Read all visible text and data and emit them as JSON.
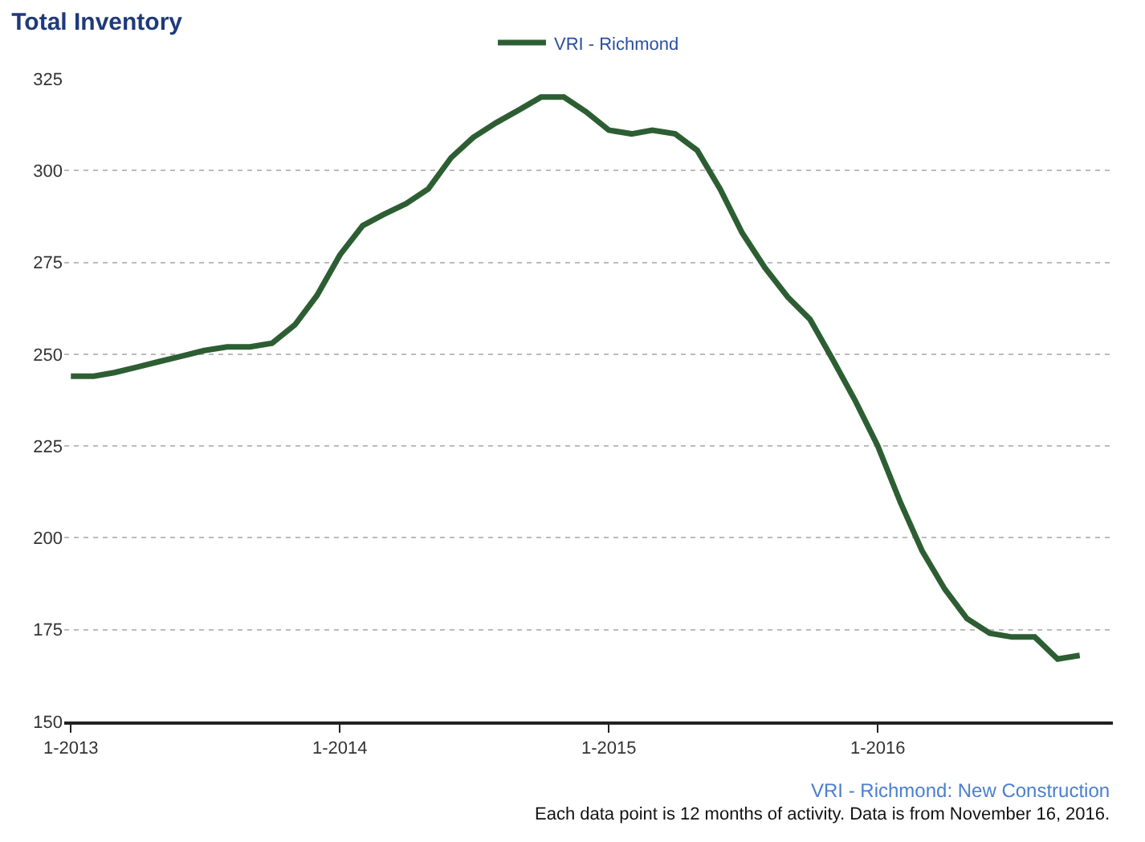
{
  "chart_data": {
    "type": "line",
    "title": "Total Inventory",
    "x": [
      "2013-01",
      "2013-02",
      "2013-03",
      "2013-04",
      "2013-05",
      "2013-06",
      "2013-07",
      "2013-08",
      "2013-09",
      "2013-10",
      "2013-11",
      "2013-12",
      "2014-01",
      "2014-02",
      "2014-03",
      "2014-04",
      "2014-05",
      "2014-06",
      "2014-07",
      "2014-08",
      "2014-09",
      "2014-10",
      "2014-11",
      "2014-12",
      "2015-01",
      "2015-02",
      "2015-03",
      "2015-04",
      "2015-05",
      "2015-06",
      "2015-07",
      "2015-08",
      "2015-09",
      "2015-10",
      "2015-11",
      "2015-12",
      "2016-01",
      "2016-02",
      "2016-03",
      "2016-04",
      "2016-05",
      "2016-06",
      "2016-07",
      "2016-08",
      "2016-09",
      "2016-10"
    ],
    "series": [
      {
        "name": "VRI - Richmond",
        "color": "#2d5e33",
        "values": [
          244,
          244,
          245,
          246.5,
          248,
          249.5,
          251,
          252,
          252,
          253,
          258,
          266,
          277,
          285,
          288,
          291,
          295,
          303.5,
          309,
          313,
          316.5,
          320,
          320,
          316,
          311,
          310,
          311,
          310,
          305.5,
          295,
          283,
          273.5,
          265.5,
          259.5,
          248.5,
          237.5,
          225,
          209.5,
          196.5,
          186,
          178,
          174,
          173,
          173,
          167,
          168
        ]
      }
    ],
    "xlim": [
      "2012-12-23",
      "2016-11-15"
    ],
    "xticks": [
      {
        "value": "2013-01-01",
        "label": "1-2013"
      },
      {
        "value": "2014-01-01",
        "label": "1-2014"
      },
      {
        "value": "2015-01-01",
        "label": "1-2015"
      },
      {
        "value": "2016-01-01",
        "label": "1-2016"
      }
    ],
    "ylim": [
      150,
      325
    ],
    "yticks": [
      150,
      175,
      200,
      225,
      250,
      275,
      300,
      325
    ],
    "grid": "y",
    "legend": "top",
    "marker": "none",
    "line_style": "solid",
    "annotations": [
      "VRI - Richmond: New Construction",
      "Each data point is 12 months of activity. Data is from November 16, 2016."
    ]
  }
}
